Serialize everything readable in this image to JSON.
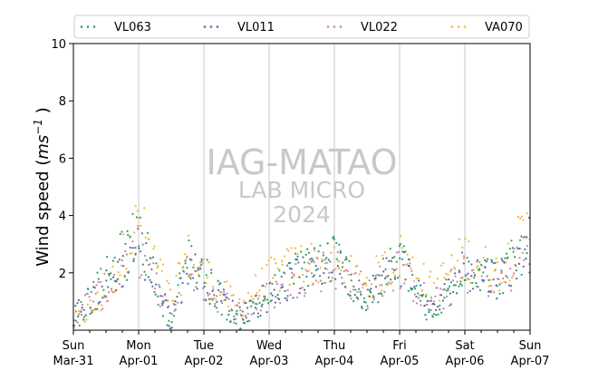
{
  "chart_data": {
    "type": "scatter",
    "title": "",
    "xlabel": "",
    "ylabel": "Wind speed (ms⁻¹)",
    "ylabel_parts": {
      "main": "Wind speed (",
      "unit": "ms",
      "exp": "−1",
      "close": ")"
    },
    "xlim": [
      "2024-03-31T00:00",
      "2024-04-07T00:00"
    ],
    "ylim": [
      0,
      10
    ],
    "yticks": [
      2,
      4,
      6,
      8,
      10
    ],
    "xticks": [
      {
        "date": "2024-03-31",
        "day": "Sun",
        "label": "Mar-31"
      },
      {
        "date": "2024-04-01",
        "day": "Mon",
        "label": "Apr-01"
      },
      {
        "date": "2024-04-02",
        "day": "Tue",
        "label": "Apr-02"
      },
      {
        "date": "2024-04-03",
        "day": "Wed",
        "label": "Apr-03"
      },
      {
        "date": "2024-04-04",
        "day": "Thu",
        "label": "Apr-04"
      },
      {
        "date": "2024-04-05",
        "day": "Fri",
        "label": "Apr-05"
      },
      {
        "date": "2024-04-06",
        "day": "Sat",
        "label": "Apr-06"
      },
      {
        "date": "2024-04-07",
        "day": "Sun",
        "label": "Apr-07"
      }
    ],
    "grid": "vertical",
    "legend_position": "top",
    "series": [
      {
        "name": "VL063",
        "color": "#2ca25f",
        "x": [
          "03-31T00",
          "03-31T12",
          "04-01T00",
          "04-01T12",
          "04-01T18",
          "04-02T00",
          "04-02T12",
          "04-03T00",
          "04-03T12",
          "04-04T00",
          "04-04T12",
          "04-05T00",
          "04-05T12",
          "04-06T00",
          "04-06T12",
          "04-07T00"
        ],
        "values": [
          0.3,
          1.8,
          3.5,
          0.2,
          2.6,
          2.0,
          0.3,
          1.2,
          2.2,
          2.6,
          1.0,
          2.6,
          0.3,
          2.4,
          1.8,
          3.0
        ]
      },
      {
        "name": "VL011",
        "color": "#4a6fa5",
        "x": [
          "03-31T00",
          "03-31T12",
          "04-01T00",
          "04-01T12",
          "04-01T18",
          "04-02T00",
          "04-02T12",
          "04-03T00",
          "04-03T12",
          "04-04T00",
          "04-04T12",
          "04-05T00",
          "04-05T12",
          "04-06T00",
          "04-06T12",
          "04-07T00"
        ],
        "values": [
          0.5,
          1.5,
          3.0,
          0.3,
          2.4,
          1.8,
          0.5,
          1.2,
          2.0,
          2.4,
          1.2,
          2.4,
          0.6,
          2.2,
          1.8,
          2.9
        ]
      },
      {
        "name": "VL022",
        "color": "#c97fae",
        "x": [
          "03-31T00",
          "03-31T12",
          "04-01T00",
          "04-01T12",
          "04-01T18",
          "04-02T00",
          "04-02T12",
          "04-03T00",
          "04-03T12",
          "04-04T00",
          "04-04T12",
          "04-05T00",
          "04-05T12",
          "04-06T00",
          "04-06T12",
          "04-07T00"
        ],
        "values": [
          0.6,
          1.4,
          2.8,
          0.4,
          2.2,
          1.6,
          0.6,
          1.2,
          1.9,
          2.2,
          1.3,
          2.2,
          0.8,
          2.0,
          1.7,
          2.8
        ]
      },
      {
        "name": "VA070",
        "color": "#f5b731",
        "x": [
          "03-31T00",
          "03-31T12",
          "04-01T00",
          "04-01T12",
          "04-01T18",
          "04-02T00",
          "04-02T12",
          "04-03T00",
          "04-03T12",
          "04-04T00",
          "04-04T12",
          "04-05T00",
          "04-05T12",
          "04-06T00",
          "04-06T12",
          "04-07T00"
        ],
        "values": [
          0.2,
          1.2,
          3.8,
          1.0,
          2.6,
          2.0,
          0.8,
          1.8,
          2.4,
          2.2,
          1.6,
          2.6,
          1.4,
          2.6,
          2.0,
          3.6
        ]
      }
    ]
  },
  "watermark": {
    "line1": "IAG-MATAO",
    "line2": "LAB MICRO",
    "line3": "2024"
  }
}
